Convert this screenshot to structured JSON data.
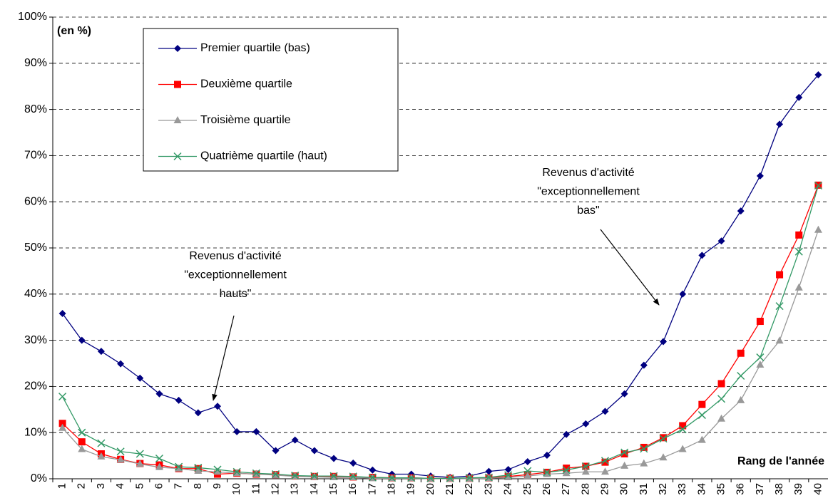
{
  "chart_data": {
    "type": "line",
    "annotations": [
      {
        "lines": [
          "Revenus d'activité",
          "\"exceptionnellement",
          "hauts\""
        ]
      },
      {
        "lines": [
          "Revenus d'activité",
          "\"exceptionnellement",
          "bas\""
        ]
      }
    ],
    "unit_note": "(en %)",
    "x_label": "Rang de l'année",
    "categories": [
      "1",
      "2",
      "3",
      "4",
      "5",
      "6",
      "7",
      "8",
      "9",
      "10",
      "11",
      "12",
      "13",
      "14",
      "15",
      "16",
      "17",
      "18",
      "19",
      "20",
      "21",
      "22",
      "23",
      "24",
      "25",
      "26",
      "27",
      "28",
      "29",
      "30",
      "31",
      "32",
      "33",
      "34",
      "35",
      "36",
      "37",
      "38",
      "39",
      "40"
    ],
    "series": [
      {
        "name": "Premier quartile (bas)",
        "color": "#000080",
        "marker": "diamond",
        "values": [
          35.8,
          30.0,
          27.6,
          24.9,
          21.8,
          18.4,
          17.0,
          14.3,
          15.7,
          10.2,
          10.2,
          6.1,
          8.4,
          6.1,
          4.4,
          3.4,
          1.9,
          1.0,
          1.0,
          0.6,
          0.3,
          0.6,
          1.6,
          2.0,
          3.7,
          5.1,
          9.6,
          11.9,
          14.6,
          18.4,
          24.6,
          29.7,
          40.0,
          48.4,
          51.5,
          58.0,
          65.6,
          76.8,
          82.6,
          87.5
        ]
      },
      {
        "name": "Deuxième quartile",
        "color": "#ff0000",
        "marker": "square",
        "values": [
          12.0,
          8.0,
          5.4,
          4.2,
          3.3,
          3.0,
          2.2,
          2.2,
          1.0,
          1.2,
          1.0,
          0.9,
          0.6,
          0.5,
          0.5,
          0.4,
          0.3,
          0.2,
          0.2,
          0.1,
          0.1,
          0.1,
          0.2,
          0.5,
          0.9,
          1.4,
          2.3,
          2.7,
          3.6,
          5.4,
          6.8,
          8.9,
          11.5,
          16.1,
          20.6,
          27.2,
          34.1,
          44.2,
          52.8,
          63.6
        ]
      },
      {
        "name": "Troisième quartile",
        "color": "#999999",
        "marker": "triangle",
        "values": [
          11.0,
          6.4,
          4.8,
          4.1,
          3.2,
          2.5,
          2.2,
          1.7,
          1.5,
          1.2,
          1.0,
          0.8,
          0.5,
          0.4,
          0.3,
          0.3,
          0.1,
          0.1,
          0.1,
          0.0,
          0.0,
          0.0,
          0.1,
          0.3,
          0.6,
          1.0,
          1.2,
          1.5,
          1.5,
          2.8,
          3.3,
          4.6,
          6.4,
          8.4,
          13.0,
          17.0,
          24.7,
          29.9,
          41.4,
          53.9
        ]
      },
      {
        "name": "Quatrième quartile (haut)",
        "color": "#339966",
        "marker": "x",
        "values": [
          17.8,
          10.0,
          7.7,
          5.9,
          5.4,
          4.4,
          2.6,
          2.4,
          2.0,
          1.5,
          1.2,
          1.0,
          0.7,
          0.6,
          0.6,
          0.5,
          0.3,
          0.2,
          0.2,
          0.1,
          0.1,
          0.2,
          0.3,
          0.8,
          1.7,
          1.4,
          1.9,
          2.7,
          3.9,
          5.7,
          6.5,
          8.7,
          10.7,
          13.8,
          17.3,
          22.3,
          26.3,
          37.4,
          49.2,
          63.5
        ]
      }
    ],
    "ylim": [
      0,
      100
    ],
    "yticks": [
      {
        "value": 0,
        "label": "0%"
      },
      {
        "value": 10,
        "label": "10%"
      },
      {
        "value": 20,
        "label": "20%"
      },
      {
        "value": 30,
        "label": "30%"
      },
      {
        "value": 40,
        "label": "40%"
      },
      {
        "value": 50,
        "label": "50%"
      },
      {
        "value": 60,
        "label": "60%"
      },
      {
        "value": 70,
        "label": "70%"
      },
      {
        "value": 80,
        "label": "80%"
      },
      {
        "value": 90,
        "label": "90%"
      },
      {
        "value": 100,
        "label": "100%"
      }
    ],
    "grid": true,
    "legend": "top-left"
  }
}
